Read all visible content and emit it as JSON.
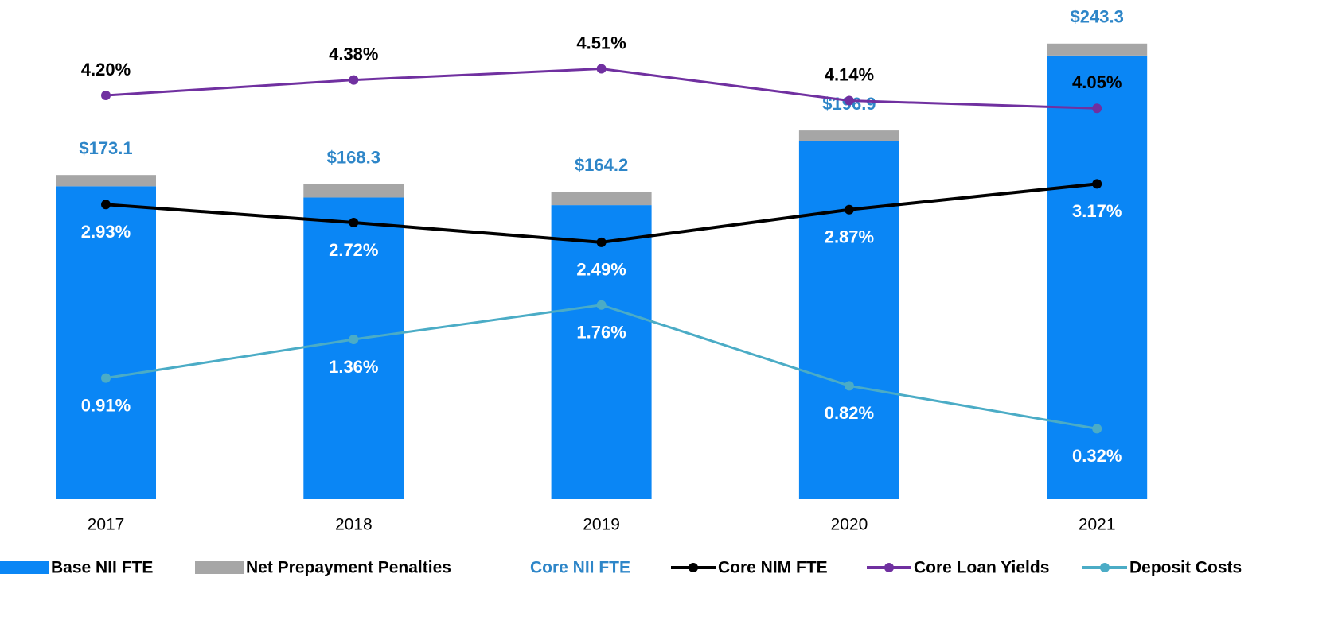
{
  "chart_data": {
    "type": "bar",
    "stacked": true,
    "categories": [
      "2017",
      "2018",
      "2019",
      "2020",
      "2021"
    ],
    "ylim": [
      0,
      250
    ],
    "y2lim": [
      -0.5,
      4.95
    ],
    "series": [
      {
        "name": "Base NII FTE",
        "kind": "bar",
        "color": "#0a86f5",
        "values": [
          167.1,
          161.1,
          157.0,
          191.4,
          236.9
        ]
      },
      {
        "name": "Net Prepayment Penalties",
        "kind": "bar",
        "color": "#a6a6a6",
        "values": [
          6.0,
          7.2,
          7.2,
          5.5,
          6.4
        ]
      },
      {
        "name": "Core NII FTE",
        "kind": "label",
        "color": "#2e86c8",
        "values": [
          173.1,
          168.3,
          164.2,
          196.9,
          243.3
        ],
        "value_labels": [
          "$173.1",
          "$168.3",
          "$164.2",
          "$196.9",
          "$243.3"
        ]
      },
      {
        "name": "Core NIM FTE",
        "kind": "line",
        "axis": "y2",
        "color": "#000000",
        "label_color": "#ffffff",
        "label_position": "below",
        "values": [
          2.93,
          2.72,
          2.49,
          2.87,
          3.17
        ],
        "value_labels": [
          "2.93%",
          "2.72%",
          "2.49%",
          "2.87%",
          "3.17%"
        ]
      },
      {
        "name": "Core Loan Yields",
        "kind": "line",
        "axis": "y2",
        "color": "#7030a0",
        "label_color": "#000000",
        "label_position": "above",
        "values": [
          4.2,
          4.38,
          4.51,
          4.14,
          4.05
        ],
        "value_labels": [
          "4.20%",
          "4.38%",
          "4.51%",
          "4.14%",
          "4.05%"
        ]
      },
      {
        "name": "Deposit Costs",
        "kind": "line",
        "axis": "y2",
        "color": "#4bacc6",
        "label_color": "#ffffff",
        "label_position": "below",
        "values": [
          0.91,
          1.36,
          1.76,
          0.82,
          0.32
        ],
        "value_labels": [
          "0.91%",
          "1.36%",
          "1.76%",
          "0.82%",
          "0.32%"
        ]
      }
    ]
  }
}
